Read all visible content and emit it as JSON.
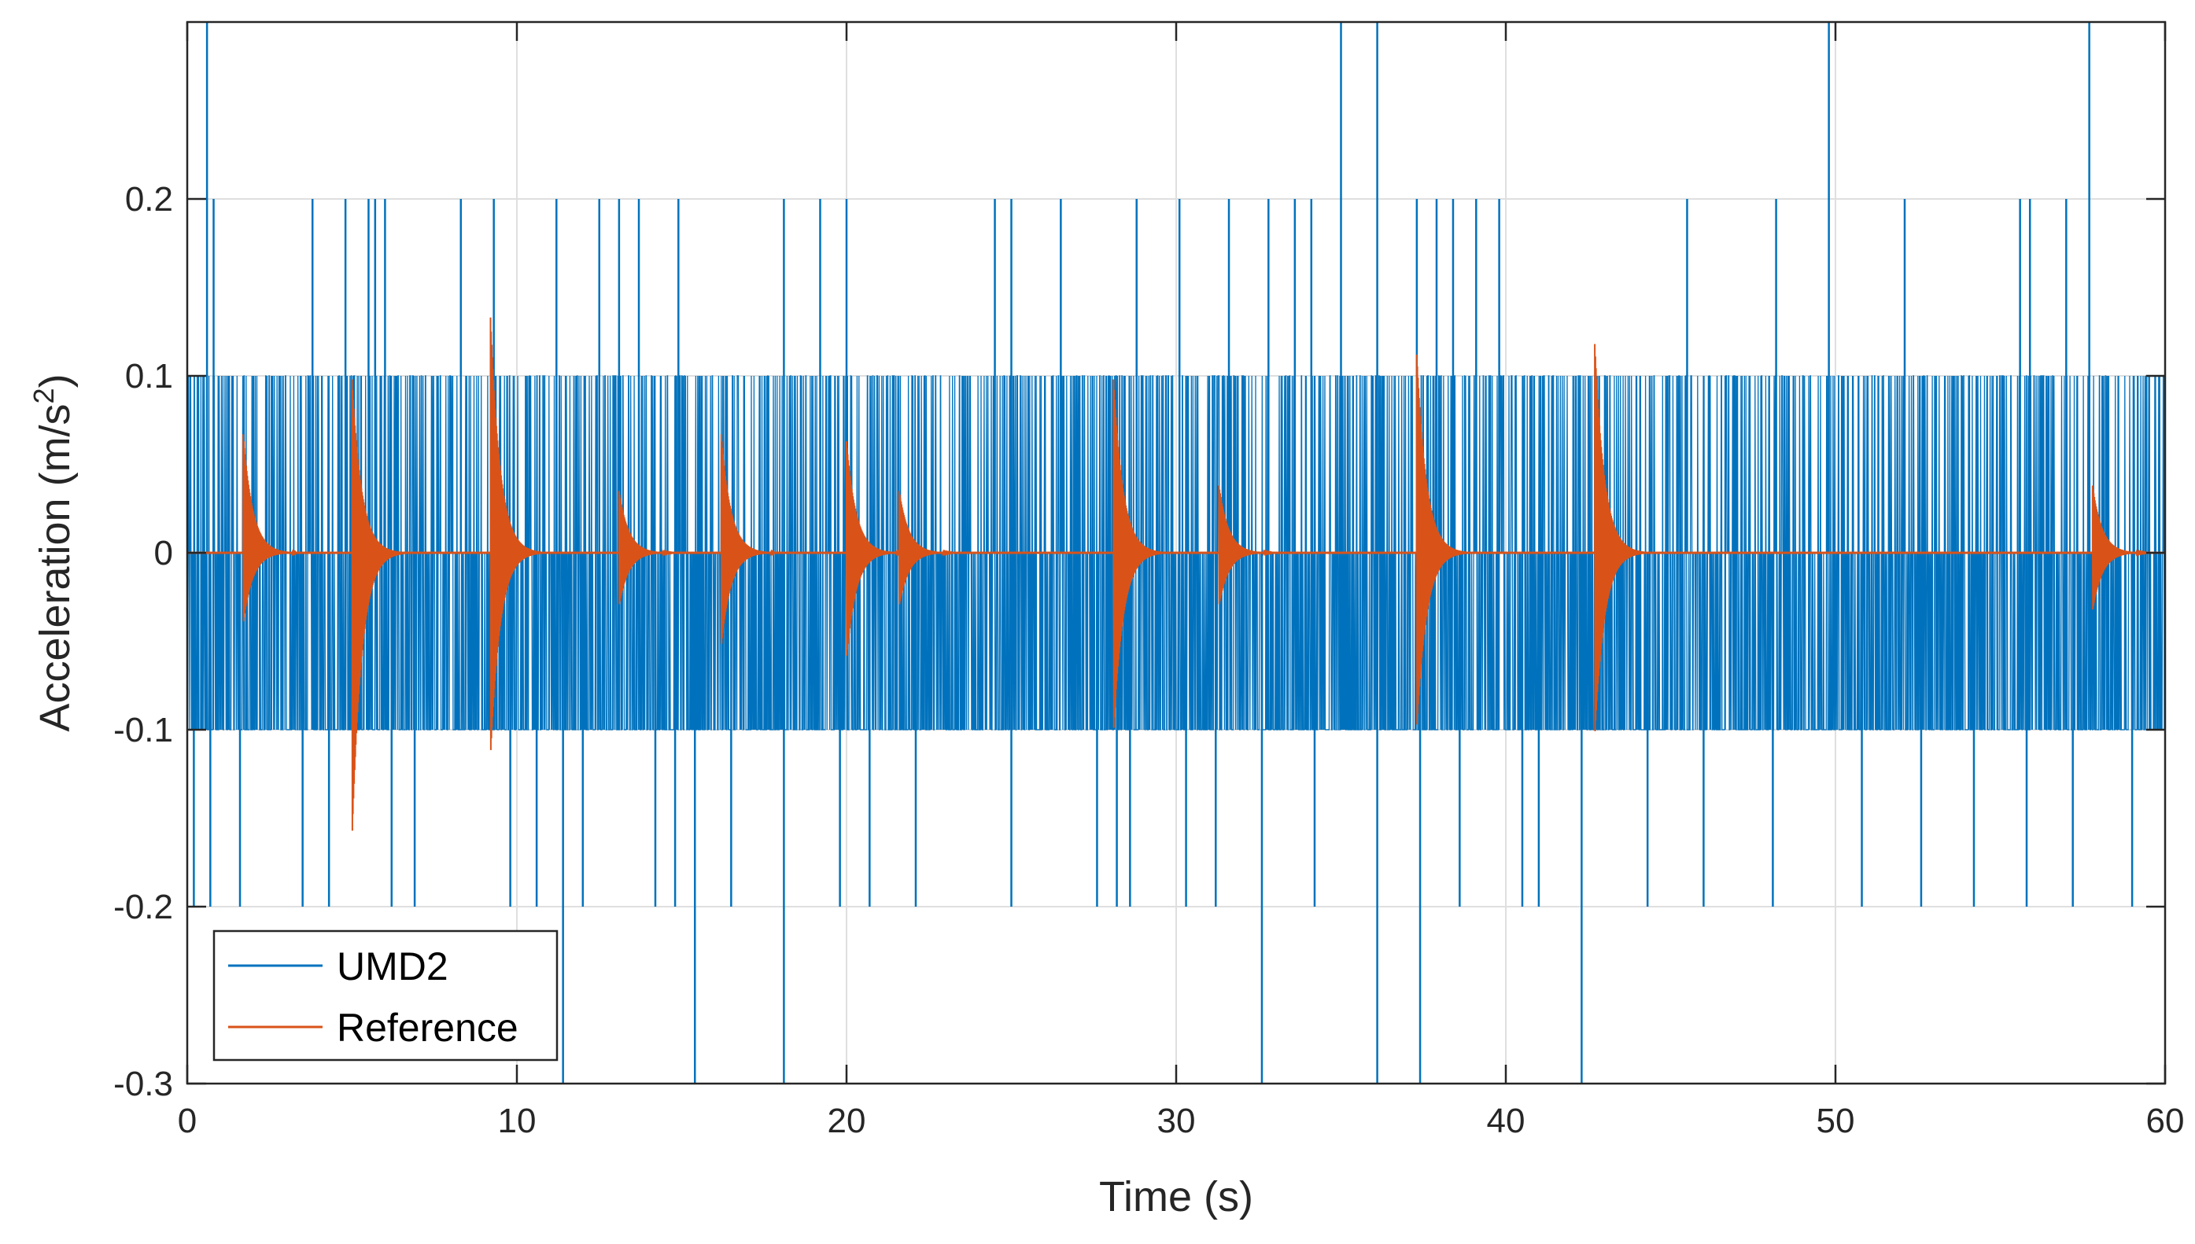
{
  "chart_data": {
    "type": "line",
    "title": "",
    "xlabel": "Time (s)",
    "ylabel_main": "Acceleration (m/s",
    "ylabel_sup": "2",
    "ylabel_end": ")",
    "xlim": [
      0,
      60
    ],
    "ylim": [
      -0.3,
      0.3
    ],
    "grid": true,
    "xticks": [
      0,
      10,
      20,
      30,
      40,
      50,
      60
    ],
    "xtick_labels": [
      "0",
      "10",
      "20",
      "30",
      "40",
      "50",
      "60"
    ],
    "yticks": [
      -0.3,
      -0.2,
      -0.1,
      0,
      0.1,
      0.2
    ],
    "ytick_labels": [
      "-0.3",
      "-0.2",
      "-0.1",
      "0",
      "0.1",
      "0.2"
    ],
    "legend_position": "bottom-left",
    "series": [
      {
        "name": "UMD2",
        "color": "#0072BD",
        "quantization_step": 0.1,
        "dense_band": [
          -0.1,
          0.1
        ],
        "outliers_positive": [
          [
            0.6,
            0.3
          ],
          [
            0.8,
            0.2
          ],
          [
            3.8,
            0.2
          ],
          [
            4.8,
            0.2
          ],
          [
            5.5,
            0.2
          ],
          [
            5.7,
            0.2
          ],
          [
            6.0,
            0.2
          ],
          [
            8.3,
            0.2
          ],
          [
            9.3,
            0.2
          ],
          [
            11.2,
            0.2
          ],
          [
            12.5,
            0.2
          ],
          [
            13.1,
            0.2
          ],
          [
            13.7,
            0.2
          ],
          [
            14.9,
            0.2
          ],
          [
            18.1,
            0.2
          ],
          [
            19.2,
            0.2
          ],
          [
            20.0,
            0.2
          ],
          [
            24.5,
            0.2
          ],
          [
            25.0,
            0.2
          ],
          [
            26.5,
            0.2
          ],
          [
            28.8,
            0.2
          ],
          [
            30.1,
            0.2
          ],
          [
            31.6,
            0.2
          ],
          [
            32.8,
            0.2
          ],
          [
            33.6,
            0.2
          ],
          [
            34.1,
            0.2
          ],
          [
            35.0,
            0.3
          ],
          [
            36.1,
            0.3
          ],
          [
            37.3,
            0.2
          ],
          [
            37.9,
            0.2
          ],
          [
            38.4,
            0.2
          ],
          [
            39.1,
            0.2
          ],
          [
            39.8,
            0.2
          ],
          [
            45.5,
            0.2
          ],
          [
            48.2,
            0.2
          ],
          [
            49.8,
            0.3
          ],
          [
            52.1,
            0.2
          ],
          [
            55.6,
            0.2
          ],
          [
            55.9,
            0.2
          ],
          [
            57.0,
            0.2
          ],
          [
            57.7,
            0.3
          ]
        ],
        "outliers_negative": [
          [
            0.2,
            -0.2
          ],
          [
            0.7,
            -0.2
          ],
          [
            1.6,
            -0.2
          ],
          [
            3.5,
            -0.2
          ],
          [
            4.3,
            -0.2
          ],
          [
            6.2,
            -0.2
          ],
          [
            6.9,
            -0.2
          ],
          [
            9.8,
            -0.2
          ],
          [
            10.6,
            -0.2
          ],
          [
            11.4,
            -0.3
          ],
          [
            12.0,
            -0.2
          ],
          [
            14.2,
            -0.2
          ],
          [
            14.8,
            -0.2
          ],
          [
            15.4,
            -0.3
          ],
          [
            16.5,
            -0.2
          ],
          [
            18.1,
            -0.3
          ],
          [
            19.8,
            -0.2
          ],
          [
            20.7,
            -0.2
          ],
          [
            22.1,
            -0.2
          ],
          [
            25.0,
            -0.2
          ],
          [
            27.6,
            -0.2
          ],
          [
            28.2,
            -0.2
          ],
          [
            28.6,
            -0.2
          ],
          [
            30.3,
            -0.2
          ],
          [
            31.2,
            -0.2
          ],
          [
            32.6,
            -0.3
          ],
          [
            34.2,
            -0.2
          ],
          [
            36.1,
            -0.3
          ],
          [
            37.4,
            -0.3
          ],
          [
            38.6,
            -0.2
          ],
          [
            40.5,
            -0.2
          ],
          [
            41.0,
            -0.2
          ],
          [
            42.3,
            -0.3
          ],
          [
            44.3,
            -0.2
          ],
          [
            46.0,
            -0.2
          ],
          [
            48.1,
            -0.2
          ],
          [
            50.8,
            -0.2
          ],
          [
            52.6,
            -0.2
          ],
          [
            54.2,
            -0.2
          ],
          [
            55.8,
            -0.2
          ],
          [
            57.2,
            -0.2
          ],
          [
            59.0,
            -0.2
          ]
        ]
      },
      {
        "name": "Reference",
        "color": "#D95319",
        "baseline": 0,
        "impulses": [
          {
            "t": 1.7,
            "peak": 0.067,
            "trough": -0.04
          },
          {
            "t": 5.0,
            "peak": 0.098,
            "trough": -0.162
          },
          {
            "t": 9.2,
            "peak": 0.133,
            "trough": -0.115
          },
          {
            "t": 13.1,
            "peak": 0.035,
            "trough": -0.03
          },
          {
            "t": 16.2,
            "peak": 0.067,
            "trough": -0.053
          },
          {
            "t": 20.0,
            "peak": 0.063,
            "trough": -0.06
          },
          {
            "t": 21.6,
            "peak": 0.035,
            "trough": -0.03
          },
          {
            "t": 28.1,
            "peak": 0.098,
            "trough": -0.102
          },
          {
            "t": 31.3,
            "peak": 0.038,
            "trough": -0.03
          },
          {
            "t": 37.3,
            "peak": 0.112,
            "trough": -0.1
          },
          {
            "t": 42.7,
            "peak": 0.118,
            "trough": -0.104
          },
          {
            "t": 57.8,
            "peak": 0.038,
            "trough": -0.033
          }
        ]
      }
    ]
  }
}
